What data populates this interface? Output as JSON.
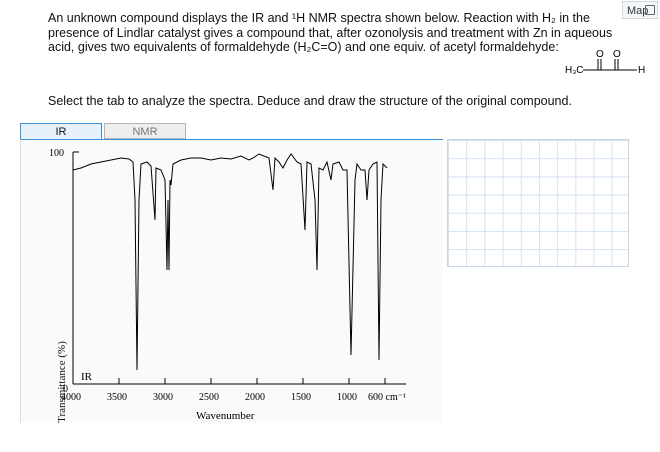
{
  "map_link": {
    "label": "Map"
  },
  "prompt": {
    "line1": "An unknown compound displays the IR and ¹H NMR spectra shown below. Reaction with H₂ in the",
    "line2": "presence of  Lindlar catalyst gives a compound that, after ozonolysis and treatment with Zn in aqueous",
    "line3": "acid, gives two equivalents of formaldehyde (H₂C=O) and one equiv. of acetyl formaldehyde:"
  },
  "acetyl_formaldehyde": {
    "left_group": "H₃C",
    "right_group": "H",
    "oxygen": "O"
  },
  "instruction": "Select the tab to analyze the spectra. Deduce and draw the structure of the original compound.",
  "tabs": [
    {
      "label": "IR",
      "active": true
    },
    {
      "label": "NMR",
      "active": false
    }
  ],
  "spectrum": {
    "y_axis_label": "Transmittance (%)",
    "y_top_label": "100",
    "y_bottom_label": "0",
    "inset_label": "IR",
    "x_axis_label": "Wavenumber",
    "x_ticks": [
      "4000",
      "3500",
      "3000",
      "2500",
      "2000",
      "1500",
      "1000",
      "600 cm⁻¹"
    ]
  },
  "colors": {
    "tab_active_border": "#3a8fd6",
    "grid_line": "#d4e2f1"
  }
}
